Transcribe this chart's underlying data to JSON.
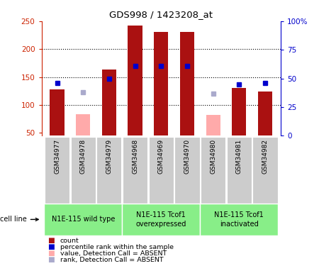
{
  "title": "GDS998 / 1423208_at",
  "samples": [
    "GSM34977",
    "GSM34978",
    "GSM34979",
    "GSM34968",
    "GSM34969",
    "GSM34970",
    "GSM34980",
    "GSM34981",
    "GSM34982"
  ],
  "count_values": [
    128,
    null,
    163,
    243,
    231,
    231,
    null,
    130,
    124
  ],
  "count_absent": [
    null,
    84,
    null,
    null,
    null,
    null,
    82,
    null,
    null
  ],
  "percentile_values": [
    46,
    null,
    50,
    61,
    61,
    61,
    null,
    45,
    46
  ],
  "percentile_absent": [
    null,
    38,
    null,
    null,
    null,
    null,
    37,
    null,
    null
  ],
  "ylim_left": [
    45,
    250
  ],
  "ylim_right": [
    0,
    100
  ],
  "yticks_left": [
    50,
    100,
    150,
    200,
    250
  ],
  "yticks_right": [
    0,
    25,
    50,
    75,
    100
  ],
  "ytick_labels_left": [
    "50",
    "100",
    "150",
    "200",
    "250"
  ],
  "ytick_labels_right": [
    "0",
    "25",
    "50",
    "75",
    "100%"
  ],
  "bar_color": "#aa1111",
  "bar_absent_color": "#ffaaaa",
  "square_color": "#0000cc",
  "square_absent_color": "#aaaacc",
  "grid_color": "#000000",
  "left_axis_color": "#cc2200",
  "right_axis_color": "#0000cc",
  "sample_bg": "#cccccc",
  "group_bg": "#88ee88",
  "groups": [
    {
      "label": "N1E-115 wild type",
      "start": 0,
      "end": 3
    },
    {
      "label": "N1E-115 Tcof1\noverexpressed",
      "start": 3,
      "end": 6
    },
    {
      "label": "N1E-115 Tcof1\ninactivated",
      "start": 6,
      "end": 9
    }
  ],
  "cell_line_label": "cell line",
  "legend_items": [
    {
      "label": "count",
      "color": "#aa1111"
    },
    {
      "label": "percentile rank within the sample",
      "color": "#0000cc"
    },
    {
      "label": "value, Detection Call = ABSENT",
      "color": "#ffaaaa"
    },
    {
      "label": "rank, Detection Call = ABSENT",
      "color": "#aaaacc"
    }
  ],
  "bar_width": 0.55,
  "square_size": 5,
  "grid_yticks": [
    100,
    150,
    200
  ]
}
